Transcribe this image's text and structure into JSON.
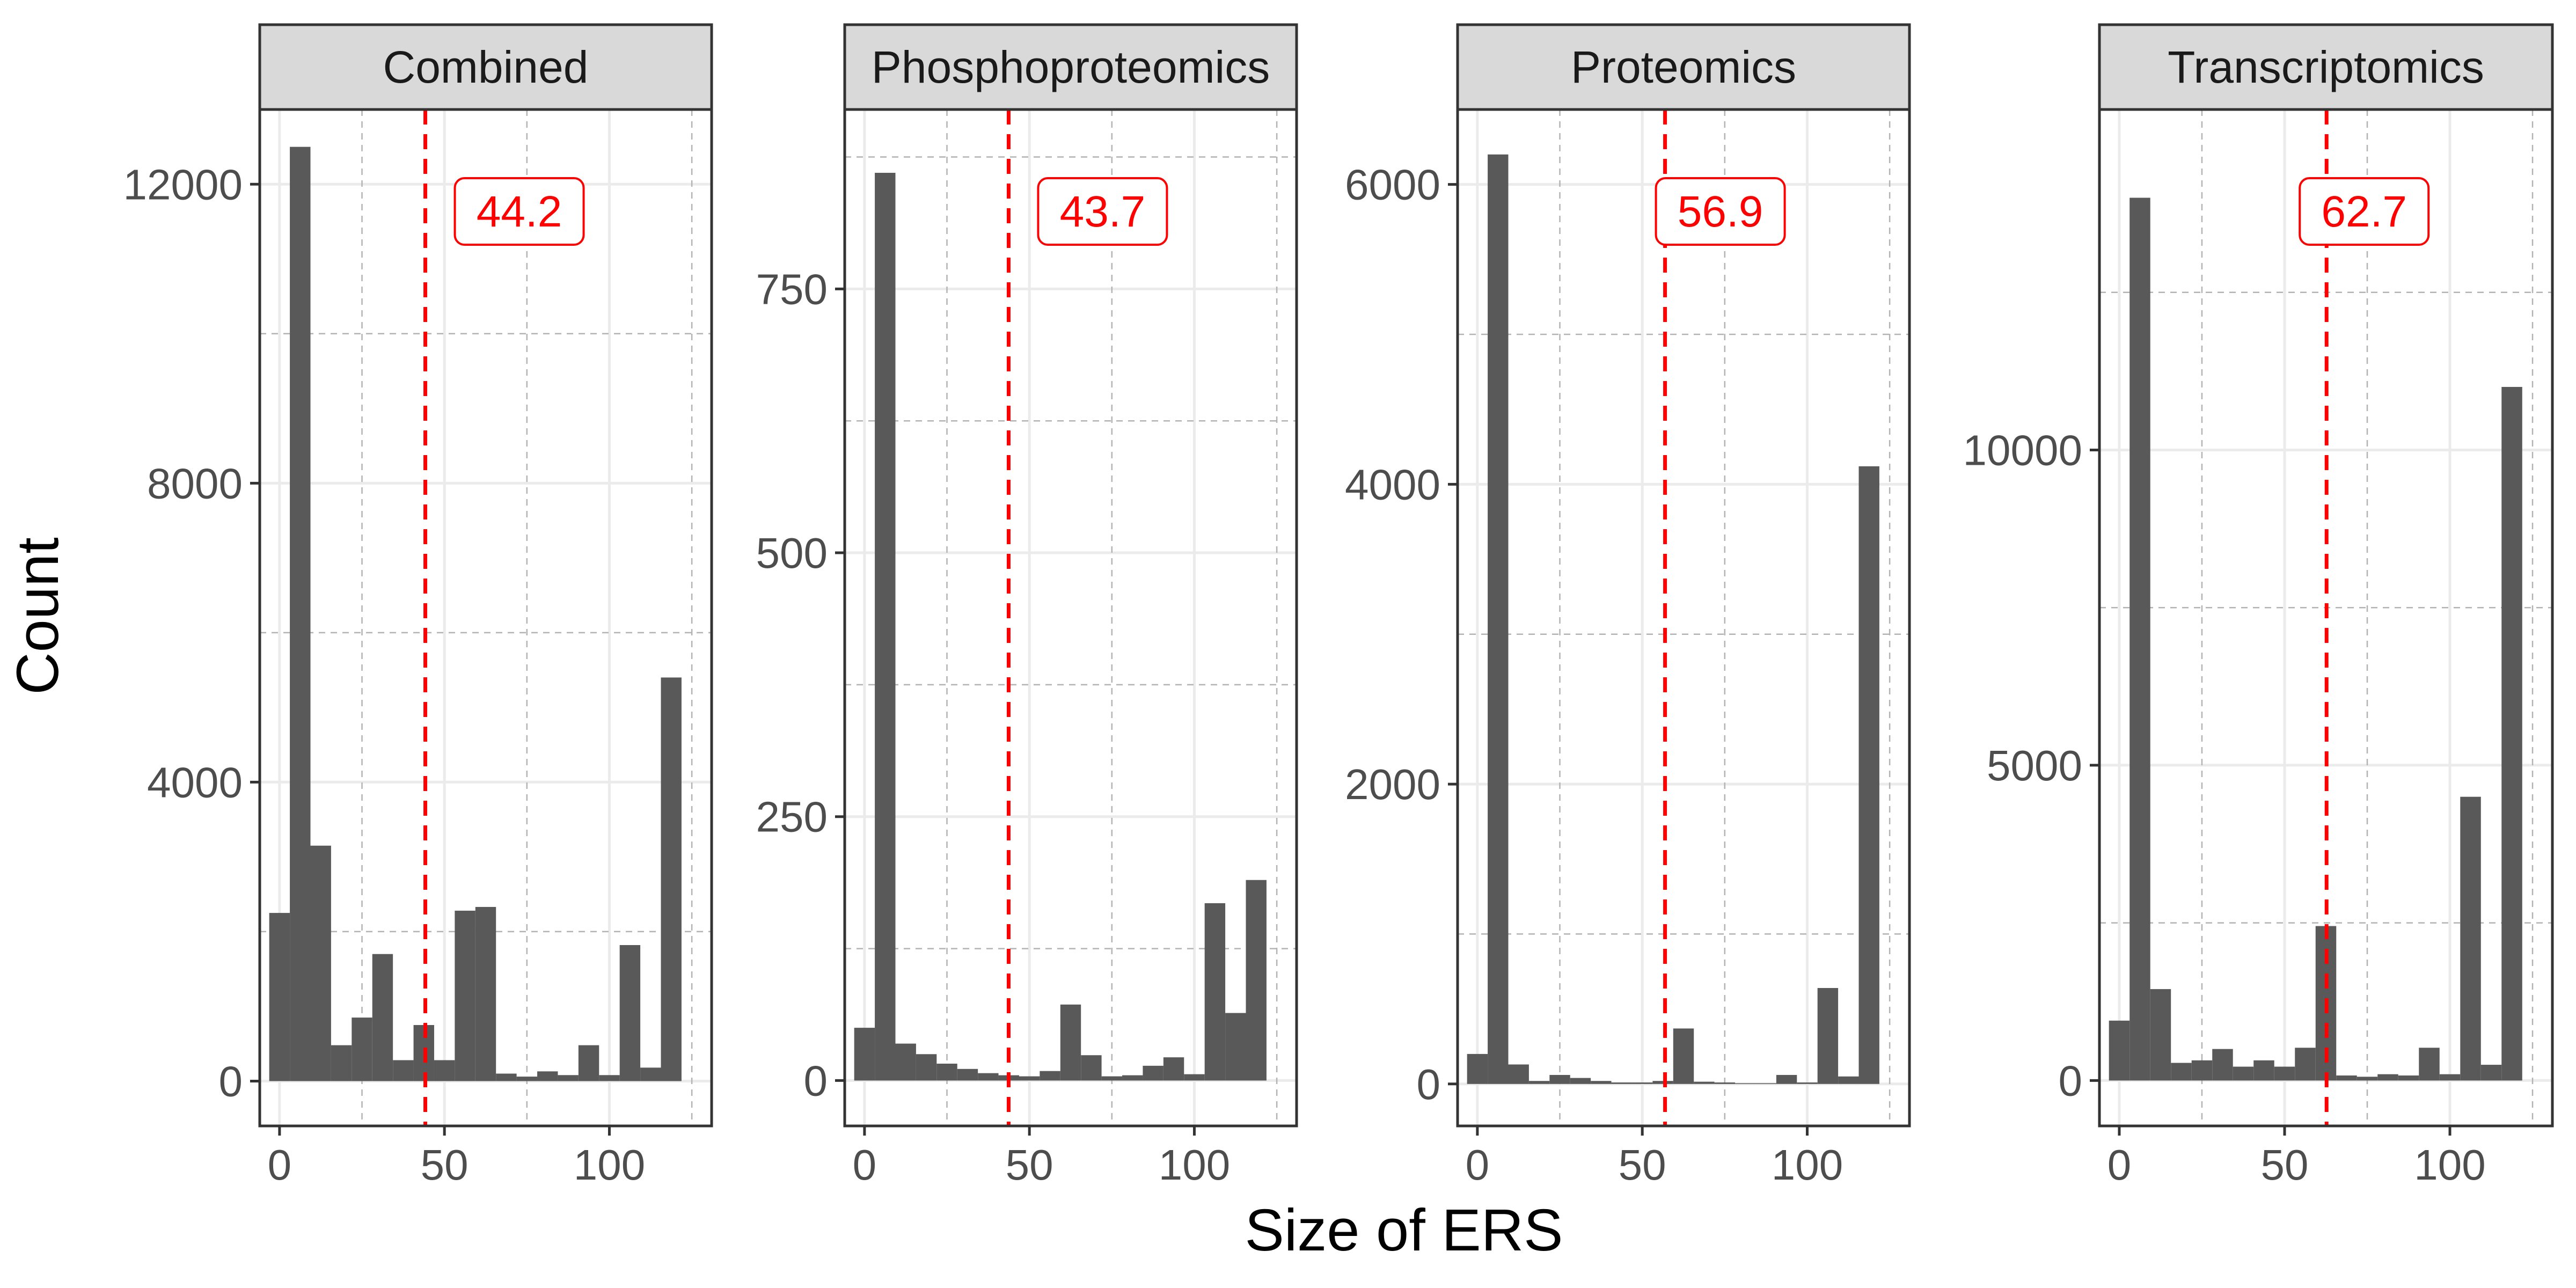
{
  "figure": {
    "xlabel": "Size of ERS",
    "ylabel": "Count",
    "bar_color": "#595959",
    "mean_line_color": "#ff0000",
    "strip_fill": "#d9d9d9",
    "panel_border": "#333333",
    "major_grid_color": "#ebebeb",
    "minor_grid_color": "#b3b3b3"
  },
  "chart_data": [
    {
      "type": "bar",
      "title": "Combined",
      "bin_width": 6.25,
      "x": [
        0,
        6.25,
        12.5,
        18.75,
        25,
        31.25,
        37.5,
        43.75,
        50,
        56.25,
        62.5,
        68.75,
        75,
        81.25,
        87.5,
        93.75,
        100,
        106.25,
        112.5,
        118.75,
        125
      ],
      "values": [
        2250,
        12500,
        3150,
        480,
        850,
        1700,
        280,
        750,
        280,
        2280,
        2330,
        100,
        60,
        130,
        80,
        480,
        80,
        1820,
        180,
        5400,
        0
      ],
      "mean": 44.2,
      "mean_label": "44.2",
      "xlim": [
        -6,
        131
      ],
      "ylim": [
        -600,
        13000
      ],
      "x_ticks": [
        0,
        50,
        100
      ],
      "x_tick_labels": [
        "0",
        "50",
        "100"
      ],
      "y_ticks": [
        0,
        4000,
        8000,
        12000
      ],
      "y_tick_labels": [
        "0",
        "4000",
        "8000",
        "12000"
      ]
    },
    {
      "type": "bar",
      "title": "Phosphoproteomics",
      "bin_width": 6.25,
      "x": [
        0,
        6.25,
        12.5,
        18.75,
        25,
        31.25,
        37.5,
        43.75,
        50,
        56.25,
        62.5,
        68.75,
        75,
        81.25,
        87.5,
        93.75,
        100,
        106.25,
        112.5,
        118.75,
        125
      ],
      "values": [
        50,
        860,
        35,
        25,
        16,
        11,
        7,
        5,
        4,
        9,
        72,
        24,
        4,
        5,
        14,
        22,
        6,
        168,
        64,
        190,
        0
      ],
      "mean": 43.7,
      "mean_label": "43.7",
      "xlim": [
        -6,
        131
      ],
      "ylim": [
        -43,
        920
      ],
      "x_ticks": [
        0,
        50,
        100
      ],
      "x_tick_labels": [
        "0",
        "50",
        "100"
      ],
      "y_ticks": [
        0,
        250,
        500,
        750
      ],
      "y_tick_labels": [
        "0",
        "250",
        "500",
        "750"
      ]
    },
    {
      "type": "bar",
      "title": "Proteomics",
      "bin_width": 6.25,
      "x": [
        0,
        6.25,
        12.5,
        18.75,
        25,
        31.25,
        37.5,
        43.75,
        50,
        56.25,
        62.5,
        68.75,
        75,
        81.25,
        87.5,
        93.75,
        100,
        106.25,
        112.5,
        118.75,
        125
      ],
      "values": [
        200,
        6200,
        130,
        20,
        60,
        40,
        20,
        10,
        10,
        20,
        370,
        15,
        10,
        5,
        5,
        60,
        10,
        640,
        50,
        4120,
        0
      ],
      "mean": 56.9,
      "mean_label": "56.9",
      "xlim": [
        -6,
        131
      ],
      "ylim": [
        -280,
        6500
      ],
      "x_ticks": [
        0,
        50,
        100
      ],
      "x_tick_labels": [
        "0",
        "50",
        "100"
      ],
      "y_ticks": [
        0,
        2000,
        4000,
        6000
      ],
      "y_tick_labels": [
        "0",
        "2000",
        "4000",
        "6000"
      ]
    },
    {
      "type": "bar",
      "title": "Transcriptomics",
      "bin_width": 6.25,
      "x": [
        0,
        6.25,
        12.5,
        18.75,
        25,
        31.25,
        37.5,
        43.75,
        50,
        56.25,
        62.5,
        68.75,
        75,
        81.25,
        87.5,
        93.75,
        100,
        106.25,
        112.5,
        118.75,
        125
      ],
      "values": [
        950,
        14000,
        1450,
        280,
        320,
        500,
        220,
        320,
        220,
        520,
        2450,
        80,
        60,
        100,
        80,
        520,
        100,
        4500,
        250,
        11000,
        0
      ],
      "mean": 62.7,
      "mean_label": "62.7",
      "xlim": [
        -6,
        131
      ],
      "ylim": [
        -720,
        15400
      ],
      "x_ticks": [
        0,
        50,
        100
      ],
      "x_tick_labels": [
        "0",
        "50",
        "100"
      ],
      "y_ticks": [
        0,
        5000,
        10000
      ],
      "y_tick_labels": [
        "0",
        "5000",
        "10000"
      ]
    }
  ]
}
